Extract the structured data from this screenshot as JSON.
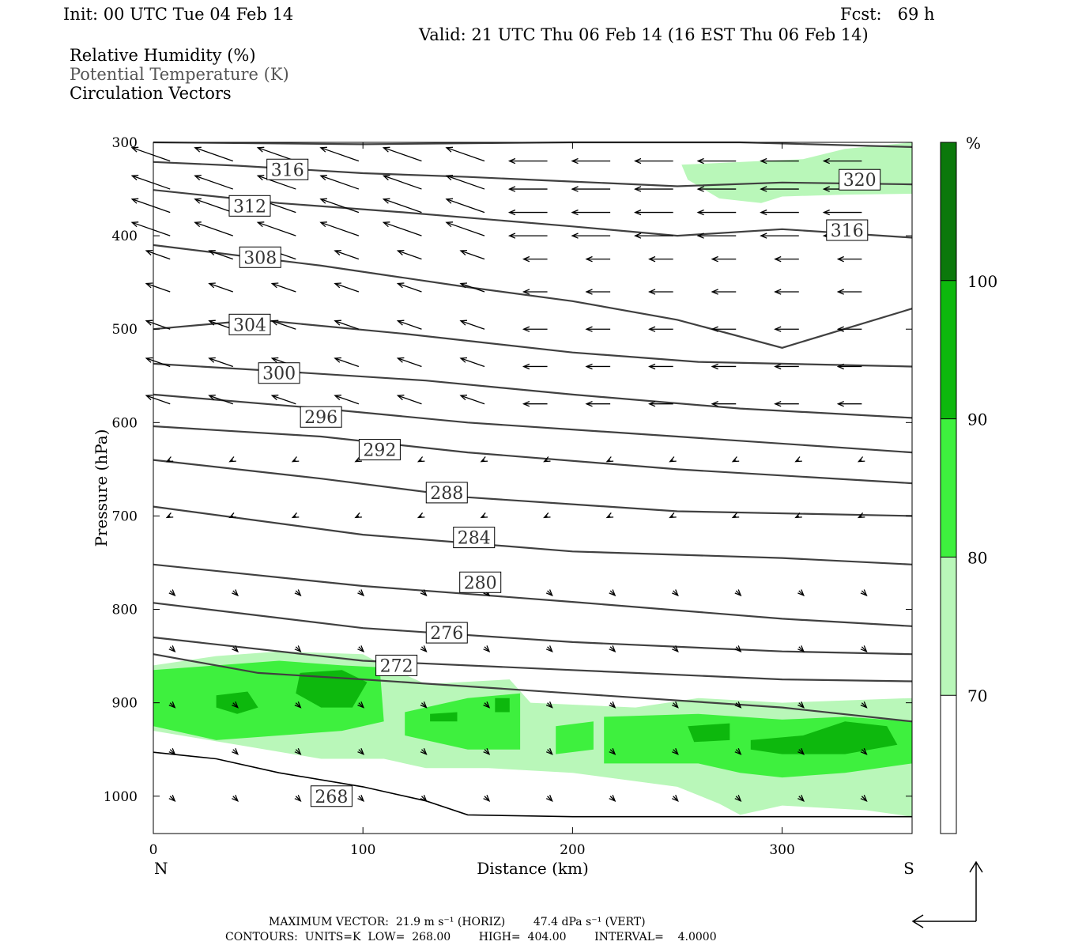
{
  "header": {
    "init": "Init: 00 UTC Tue 04 Feb 14",
    "fcst": "Fcst:   69 h",
    "valid": "Valid: 21 UTC Thu 06 Feb 14 (16 EST Thu 06 Feb 14)"
  },
  "fields": {
    "rh": "Relative Humidity (%)",
    "theta": "Potential Temperature (K)",
    "vectors": "Circulation Vectors"
  },
  "footer": {
    "max_vector": "MAXIMUM VECTOR:  21.9 m s⁻¹ (HORIZ)        47.4 dPa s⁻¹ (VERT)",
    "contours": "CONTOURS:  UNITS=K  LOW=  268.00        HIGH=  404.00        INTERVAL=    4.0000"
  },
  "colors": {
    "rh70": "#b9f7b9",
    "rh80": "#3ef03e",
    "rh90": "#0db80d",
    "rh100": "#0b780b",
    "contour": "#404040"
  },
  "chart_data": {
    "type": "contour",
    "xlabel": "Distance (km)",
    "ylabel": "Pressure (hPa)",
    "xlim": [
      0,
      362
    ],
    "ylim": [
      1040,
      300
    ],
    "x_ticks": [
      0,
      100,
      200,
      300
    ],
    "y_ticks": [
      300,
      400,
      500,
      600,
      700,
      800,
      900,
      1000
    ],
    "left_end_label": "N",
    "right_end_label": "S",
    "colorbar": {
      "unit": "%",
      "levels": [
        70,
        80,
        90,
        100
      ],
      "colors": [
        "#ffffff",
        "#b9f7b9",
        "#3ef03e",
        "#0db80d",
        "#0b780b"
      ]
    },
    "theta_contours": [
      {
        "value": 320,
        "label_at": [
          337,
          340
        ],
        "points": [
          [
            0,
            300
          ],
          [
            100,
            302
          ],
          [
            200,
            300
          ],
          [
            280,
            300
          ],
          [
            362,
            305
          ]
        ]
      },
      {
        "value": 316,
        "label_at": [
          64,
          329
        ],
        "points": [
          [
            0,
            321
          ],
          [
            40,
            325
          ],
          [
            100,
            333
          ],
          [
            150,
            337
          ],
          [
            200,
            342
          ],
          [
            250,
            347
          ],
          [
            300,
            343
          ],
          [
            362,
            345
          ]
        ]
      },
      {
        "value": 316,
        "label_at": [
          331,
          394
        ],
        "points": [
          [
            0,
            0
          ],
          [
            0,
            0
          ]
        ]
      },
      {
        "value": 312,
        "label_at": [
          46,
          368
        ],
        "points": [
          [
            0,
            351
          ],
          [
            60,
            365
          ],
          [
            120,
            375
          ],
          [
            200,
            390
          ],
          [
            250,
            400
          ],
          [
            300,
            393
          ],
          [
            362,
            402
          ]
        ]
      },
      {
        "value": 308,
        "label_at": [
          51,
          423
        ],
        "points": [
          [
            0,
            410
          ],
          [
            80,
            432
          ],
          [
            150,
            455
          ],
          [
            200,
            470
          ],
          [
            250,
            490
          ],
          [
            300,
            520
          ],
          [
            362,
            478
          ]
        ]
      },
      {
        "value": 304,
        "label_at": [
          46,
          495
        ],
        "points": [
          [
            0,
            500
          ],
          [
            50,
            490
          ],
          [
            120,
            505
          ],
          [
            200,
            525
          ],
          [
            260,
            535
          ],
          [
            362,
            540
          ]
        ]
      },
      {
        "value": 300,
        "label_at": [
          60,
          547
        ],
        "points": [
          [
            0,
            537
          ],
          [
            60,
            545
          ],
          [
            130,
            555
          ],
          [
            200,
            570
          ],
          [
            280,
            585
          ],
          [
            362,
            595
          ]
        ]
      },
      {
        "value": 296,
        "label_at": [
          80,
          594
        ],
        "points": [
          [
            0,
            570
          ],
          [
            80,
            585
          ],
          [
            150,
            600
          ],
          [
            250,
            615
          ],
          [
            362,
            632
          ]
        ]
      },
      {
        "value": 292,
        "label_at": [
          108,
          629
        ],
        "points": [
          [
            0,
            604
          ],
          [
            80,
            615
          ],
          [
            150,
            632
          ],
          [
            250,
            650
          ],
          [
            362,
            665
          ]
        ]
      },
      {
        "value": 288,
        "label_at": [
          140,
          675
        ],
        "points": [
          [
            0,
            640
          ],
          [
            80,
            660
          ],
          [
            150,
            680
          ],
          [
            250,
            695
          ],
          [
            362,
            700
          ]
        ]
      },
      {
        "value": 284,
        "label_at": [
          153,
          723
        ],
        "points": [
          [
            0,
            690
          ],
          [
            100,
            720
          ],
          [
            200,
            738
          ],
          [
            300,
            745
          ],
          [
            362,
            752
          ]
        ]
      },
      {
        "value": 280,
        "label_at": [
          156,
          771
        ],
        "points": [
          [
            0,
            752
          ],
          [
            100,
            775
          ],
          [
            200,
            792
          ],
          [
            300,
            810
          ],
          [
            362,
            818
          ]
        ]
      },
      {
        "value": 276,
        "label_at": [
          140,
          825
        ],
        "points": [
          [
            0,
            793
          ],
          [
            100,
            820
          ],
          [
            200,
            835
          ],
          [
            300,
            845
          ],
          [
            362,
            848
          ]
        ]
      },
      {
        "value": 272,
        "label_at": [
          116,
          860
        ],
        "points": [
          [
            0,
            830
          ],
          [
            100,
            855
          ],
          [
            200,
            865
          ],
          [
            300,
            875
          ],
          [
            362,
            877
          ]
        ]
      },
      {
        "value": 268,
        "label_at": [
          85,
          1000
        ],
        "points": [
          [
            0,
            848
          ],
          [
            50,
            868
          ],
          [
            100,
            875
          ],
          [
            200,
            890
          ],
          [
            300,
            905
          ],
          [
            362,
            920
          ]
        ]
      }
    ],
    "contour_label_set": [
      320,
      316,
      316,
      312,
      312,
      308,
      308,
      304,
      304,
      300,
      300,
      296,
      292,
      288,
      288,
      284,
      284,
      280,
      280,
      276,
      276,
      272,
      272,
      268
    ]
  }
}
